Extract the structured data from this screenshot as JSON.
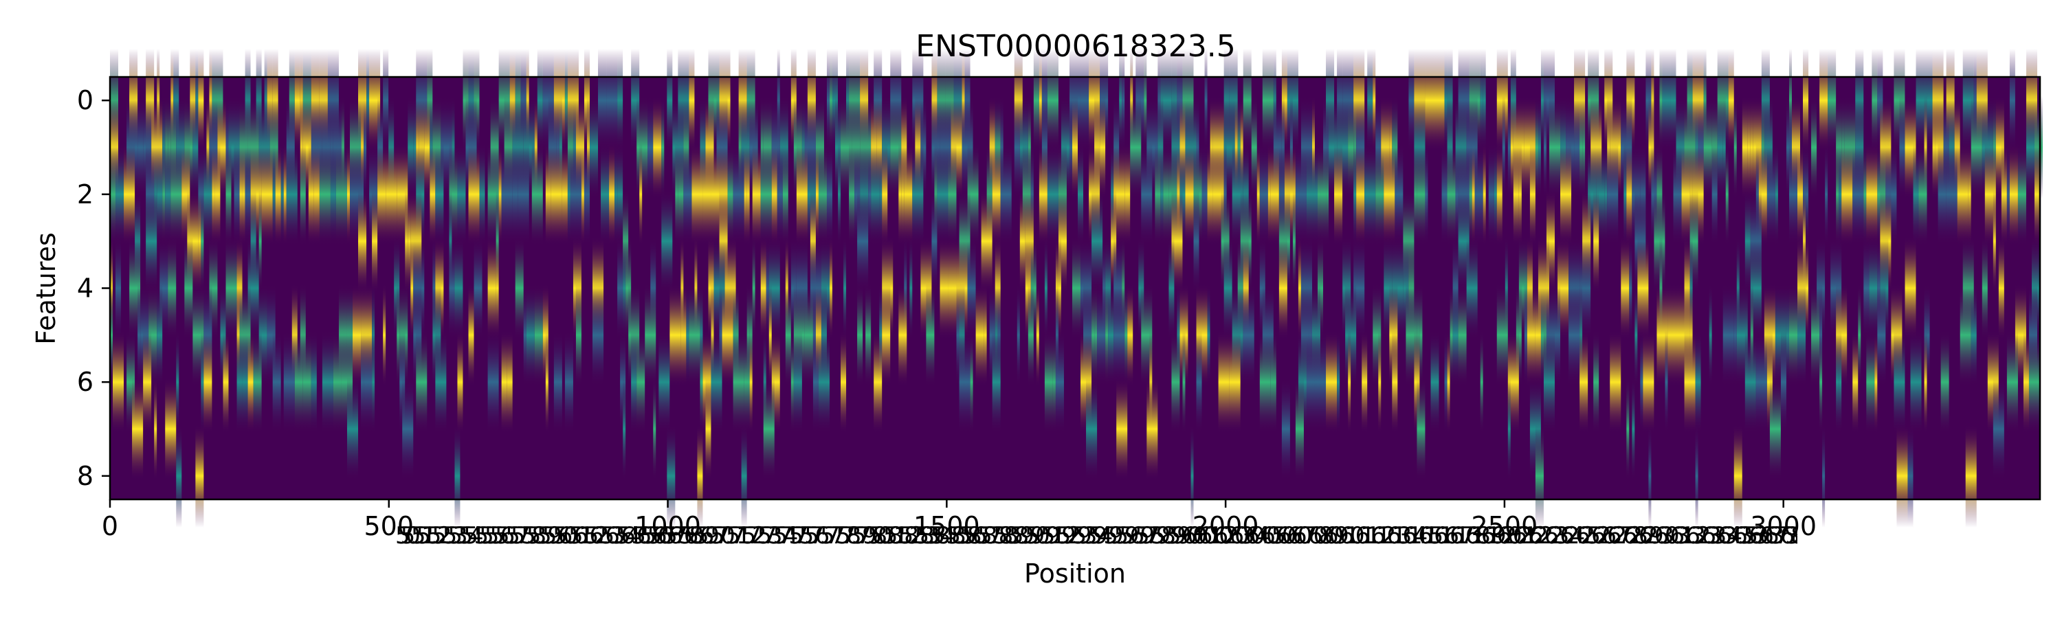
{
  "chart_data": {
    "type": "heatmap",
    "title": "ENST00000618323.5",
    "xlabel": "Position",
    "ylabel": "Features",
    "xlim": [
      0,
      3460
    ],
    "ylim": [
      8.5,
      -0.5
    ],
    "rows": 9,
    "colormap": "viridis",
    "vmin": 0,
    "vmax": 1,
    "x_ticks": [
      0,
      500,
      1000,
      1500,
      2000,
      2500,
      3000
    ],
    "y_ticks": [
      0,
      2,
      4,
      6,
      8
    ],
    "x_tick_labels": [
      "0",
      "500",
      "1000",
      "1500",
      "2000",
      "2500",
      "3000"
    ],
    "y_tick_labels": [
      "0",
      "2",
      "4",
      "6",
      "8"
    ],
    "overlapping_tick_labels_text": "5505515525535545555565575585595605615625635645655665675685695705715725735745755765775785795805815825835845855865875885895905915925935945955965975985996006016026036046056066076086096106116126136146156166176186196206216226236246256266276286296306316326336346356366376386396406416426436446456466476486496506516526536546556566576586596606616626636646656666676686696706716726736746756766776786796806816826836846856866876886896906916926936946956966976986997007017027037047057067077087097107117127137147157167177187197207217227237247257267277287297307317327337347357367377387397407417427437447457467477487497507517527537547557567577587597607617627637647657667677687697707717727737747757767777787797807817827837847857867877887897907917927937947957967977987998008018028038048058068078088098108118128138148158168178188198208218228238248258268278288298308318328338348358368378388398408418428438448458468478488498508518528538548558568578588598608618628638648658668678688698708718728738748758768778788798808818828838848858868878888898908918928938948958968978988999009019029039049059069079089099109119129139149159169179189199209219229239249259269279289299309319329339349359369379389399409419429439449459469479489499509519529539549559569579589599609619629639649659669679689699709719729739749759769779789799809819829839849859869879889899909919929939949959969979989991000"
  },
  "colors": {
    "low": "#440154",
    "mid_low": "#31688e",
    "mid": "#21918c",
    "mid_high": "#35b779",
    "high": "#fde725",
    "frame": "#000000"
  }
}
